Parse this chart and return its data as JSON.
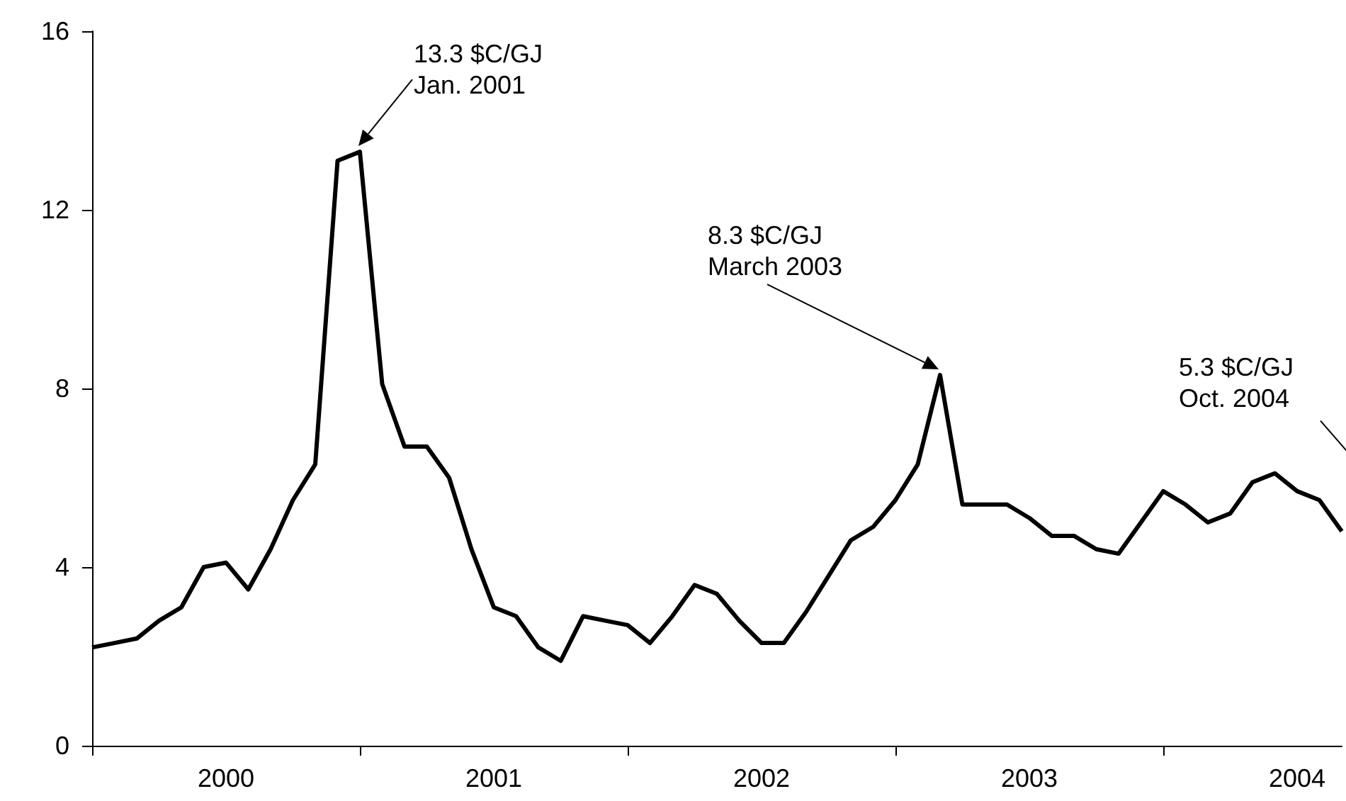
{
  "chart_data": {
    "type": "line",
    "categories": [
      null,
      null,
      null,
      null,
      null,
      null,
      "2000",
      null,
      null,
      null,
      null,
      null,
      null,
      null,
      null,
      null,
      null,
      null,
      "2001",
      null,
      null,
      null,
      null,
      null,
      null,
      null,
      null,
      null,
      null,
      null,
      "2002",
      null,
      null,
      null,
      null,
      null,
      null,
      null,
      null,
      null,
      null,
      null,
      "2003",
      null,
      null,
      null,
      null,
      null,
      null,
      null,
      null,
      null,
      null,
      null,
      "2004",
      null,
      null
    ],
    "values": [
      2.2,
      2.3,
      2.4,
      2.8,
      3.1,
      4.0,
      4.1,
      3.5,
      4.4,
      5.5,
      6.3,
      13.1,
      13.3,
      8.1,
      6.7,
      6.7,
      6.0,
      4.4,
      3.1,
      2.9,
      2.2,
      1.9,
      2.9,
      2.8,
      2.7,
      2.3,
      2.9,
      3.6,
      3.4,
      2.8,
      2.3,
      2.3,
      3.0,
      3.8,
      4.6,
      4.9,
      5.5,
      6.3,
      8.3,
      5.4,
      5.4,
      5.4,
      5.1,
      4.7,
      4.7,
      4.4,
      4.3,
      5.0,
      5.7,
      5.4,
      5.0,
      5.2,
      5.9,
      6.1,
      5.7,
      5.5,
      4.8
    ],
    "color": "#000000",
    "ylim": [
      0,
      16
    ],
    "yticks": [
      0,
      4,
      8,
      12,
      16
    ],
    "annotations": [
      "13.3 $C/GJ\nJan. 2001",
      "8.3 $C/GJ\nMarch 2003",
      "5.3 $C/GJ\nOct. 2004"
    ]
  }
}
